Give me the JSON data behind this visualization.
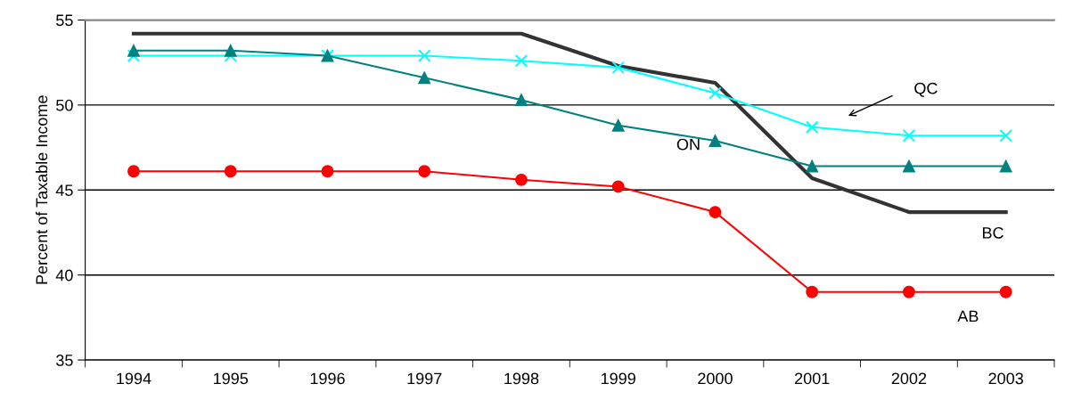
{
  "chart_data": {
    "type": "line",
    "ylabel": "Percent of Taxable Income",
    "categories": [
      "1994",
      "1995",
      "1996",
      "1997",
      "1998",
      "1999",
      "2000",
      "2001",
      "2002",
      "2003"
    ],
    "series": [
      {
        "name": "BC",
        "color": "#333333",
        "marker": "none",
        "values": [
          54.2,
          54.2,
          54.2,
          54.2,
          54.2,
          52.3,
          51.3,
          45.7,
          43.7,
          43.7
        ]
      },
      {
        "name": "QC",
        "color": "#00ffff",
        "marker": "cross",
        "values": [
          52.9,
          52.9,
          52.9,
          52.9,
          52.6,
          52.2,
          50.7,
          48.7,
          48.2,
          48.2
        ]
      },
      {
        "name": "ON",
        "color": "#008080",
        "marker": "triangle",
        "values": [
          53.2,
          53.2,
          52.9,
          51.6,
          50.3,
          48.8,
          47.9,
          46.4,
          46.4,
          46.4
        ]
      },
      {
        "name": "AB",
        "color": "#ff0000",
        "marker": "circle",
        "values": [
          46.1,
          46.1,
          46.1,
          46.1,
          45.6,
          45.2,
          43.7,
          39.0,
          39.0,
          39.0
        ]
      }
    ],
    "ylim": [
      35,
      55
    ],
    "yticks": [
      35,
      40,
      45,
      50,
      55
    ],
    "grid": "y",
    "legend": false,
    "line_style": "solid"
  }
}
